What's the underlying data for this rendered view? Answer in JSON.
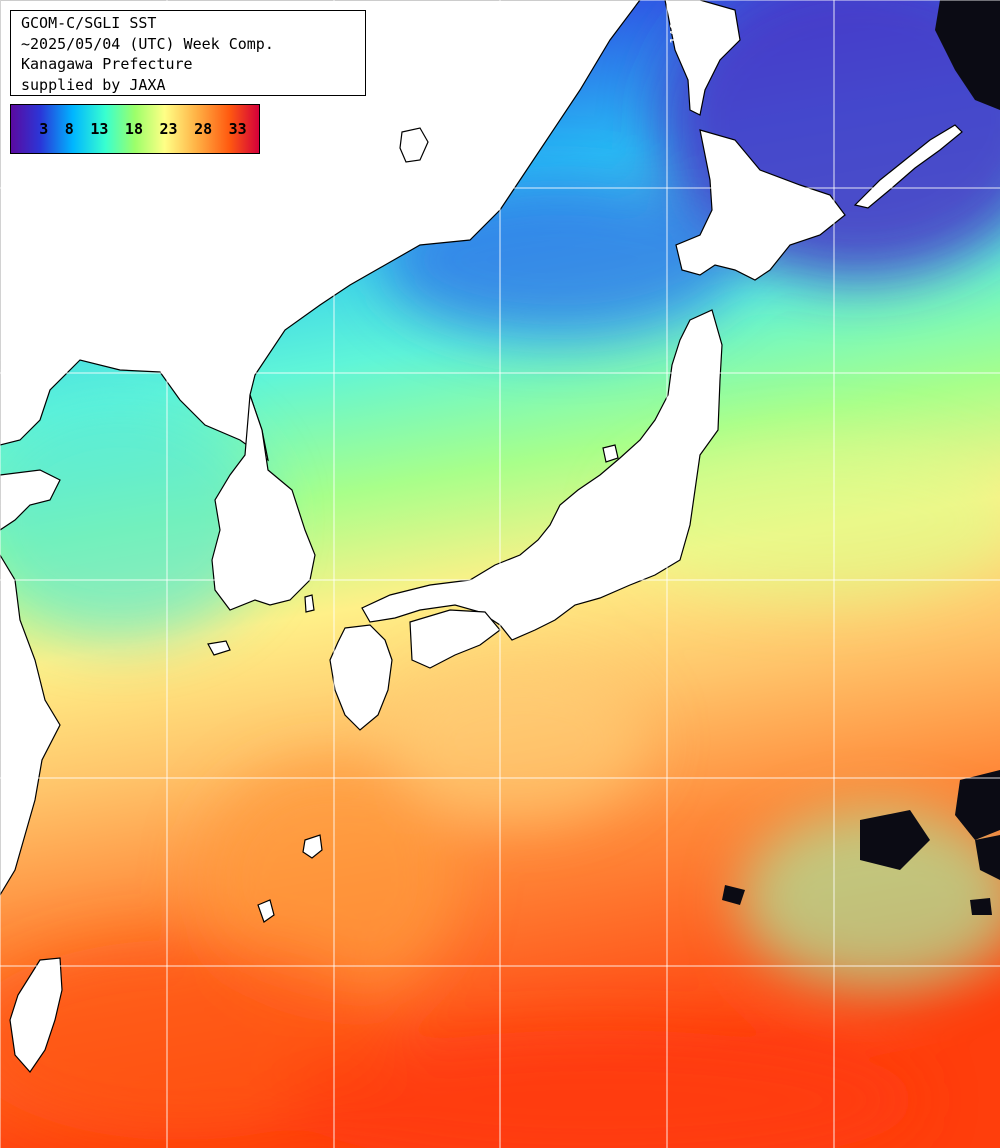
{
  "title_box": {
    "line1": "GCOM-C/SGLI SST",
    "line2": "~2025/05/04 (UTC) Week Comp.",
    "line3": "Kanagawa Prefecture",
    "line4": "supplied by JAXA"
  },
  "colorbar": {
    "ticks": [
      "3",
      "8",
      "13",
      "18",
      "23",
      "28",
      "33"
    ],
    "colors": [
      "#5b0aa0",
      "#2a37d8",
      "#00b6ff",
      "#38ffd0",
      "#9cff6a",
      "#ffff86",
      "#ffb044",
      "#ff5a10",
      "#d4003a"
    ]
  },
  "grid_labels": {
    "lat": "30N",
    "lon": "140E"
  },
  "sst_palette": {
    "very_cold": "#5a3fc8",
    "cold": "#2f62e6",
    "cool": "#27c8f5",
    "mild": "#6fffc4",
    "temperate": "#b6ff8a",
    "warm": "#ffee86",
    "hot": "#ffa54a",
    "very_hot": "#ff4a10"
  }
}
